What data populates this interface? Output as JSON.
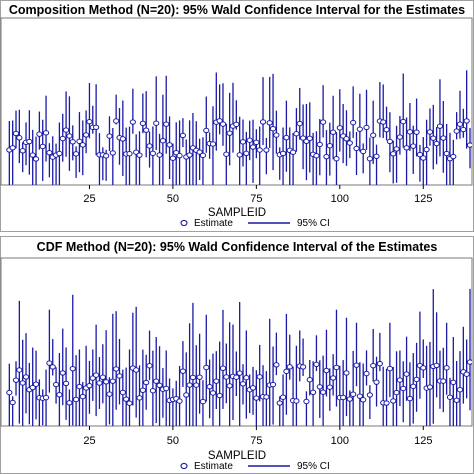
{
  "chart_data": [
    {
      "type": "scatter",
      "title": "Composition Method (N=20): 95% Wald Confidence Interval for the Estimates",
      "xlabel": "SAMPLEID",
      "ylabel": "",
      "xticks": [
        25,
        50,
        75,
        100,
        125
      ],
      "xlim": [
        0,
        139
      ],
      "legend": [
        {
          "name": "Estimate",
          "marker": "circle"
        },
        {
          "name": "95% CI",
          "marker": "line"
        }
      ],
      "legend_placement": "bottom",
      "color": "#1a1aa6",
      "seed": 17,
      "n_points": 139,
      "series": [
        {
          "name": "Estimate",
          "values": [
            0.55,
            0.62,
            0.48,
            0.58,
            0.4,
            0.53,
            0.6,
            0.45,
            0.56,
            0.5
          ]
        },
        {
          "name": "95% CI",
          "ci_halfwidth_avg": 0.3,
          "ci_halfwidth_max": 0.55
        }
      ]
    },
    {
      "type": "scatter",
      "title": "CDF Method (N=20): 95% Wald Confidence Interval of the Estimates",
      "xlabel": "SAMPLEID",
      "ylabel": "",
      "xticks": [
        25,
        50,
        75,
        100,
        125
      ],
      "xlim": [
        0,
        139
      ],
      "legend": [
        {
          "name": "Estimate",
          "marker": "circle"
        },
        {
          "name": "95% CI",
          "marker": "line"
        }
      ],
      "legend_placement": "bottom",
      "color": "#1a1aa6",
      "seed": 91,
      "n_points": 139,
      "series": [
        {
          "name": "Estimate",
          "values": [
            0.45,
            0.52,
            0.38,
            0.48,
            0.3,
            0.43,
            0.5,
            0.35,
            0.46,
            0.4
          ]
        },
        {
          "name": "95% CI",
          "ci_halfwidth_avg": 0.35,
          "ci_halfwidth_max": 0.75
        }
      ]
    }
  ]
}
